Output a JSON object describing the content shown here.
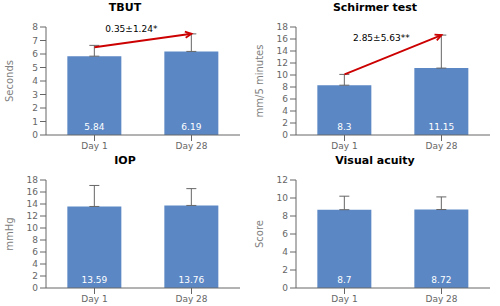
{
  "chart_data": [
    {
      "type": "bar",
      "title": "TBUT",
      "y_label": "Seconds",
      "categories": [
        "Day 1",
        "Day 28"
      ],
      "values": [
        5.84,
        6.19
      ],
      "errors": [
        0.8,
        1.3
      ],
      "color": "#5b87c5",
      "ylim": [
        0,
        8
      ],
      "yticks": [
        0,
        1,
        2,
        3,
        4,
        5,
        6,
        7,
        8
      ],
      "grid": false,
      "data_labels": true,
      "annotations": [
        {
          "text": "0.35±1.24*",
          "from": "Day 1",
          "to": "Day 28",
          "y_start": 6.5,
          "y_end": 7.5,
          "color": "#cc0000"
        }
      ]
    },
    {
      "type": "bar",
      "title": "Schirmer test",
      "y_label": "mm/5 minutes",
      "categories": [
        "Day 1",
        "Day 28"
      ],
      "values": [
        8.3,
        11.15
      ],
      "errors": [
        1.8,
        5.5
      ],
      "color": "#5b87c5",
      "ylim": [
        0,
        18
      ],
      "yticks": [
        0,
        2,
        4,
        6,
        8,
        10,
        12,
        14,
        16,
        18
      ],
      "grid": false,
      "data_labels": true,
      "annotations": [
        {
          "text": "2.85±5.63**",
          "from": "Day 1",
          "to": "Day 28",
          "y_start": 10.1,
          "y_end": 16.65,
          "color": "#cc0000"
        }
      ]
    },
    {
      "type": "bar",
      "title": "IOP",
      "y_label": "mmHg",
      "categories": [
        "Day 1",
        "Day 28"
      ],
      "values": [
        13.59,
        13.76
      ],
      "errors": [
        3.5,
        2.8
      ],
      "color": "#5b87c5",
      "ylim": [
        0,
        18
      ],
      "yticks": [
        0,
        2,
        4,
        6,
        8,
        10,
        12,
        14,
        16,
        18
      ],
      "grid": false,
      "data_labels": true
    },
    {
      "type": "bar",
      "title": "Visual acuity",
      "y_label": "Score",
      "categories": [
        "Day 1",
        "Day 28"
      ],
      "values": [
        8.7,
        8.72
      ],
      "errors": [
        1.5,
        1.4
      ],
      "color": "#5b87c5",
      "ylim": [
        0,
        12
      ],
      "yticks": [
        0,
        2,
        4,
        6,
        8,
        10,
        12
      ],
      "grid": false,
      "data_labels": true
    }
  ]
}
